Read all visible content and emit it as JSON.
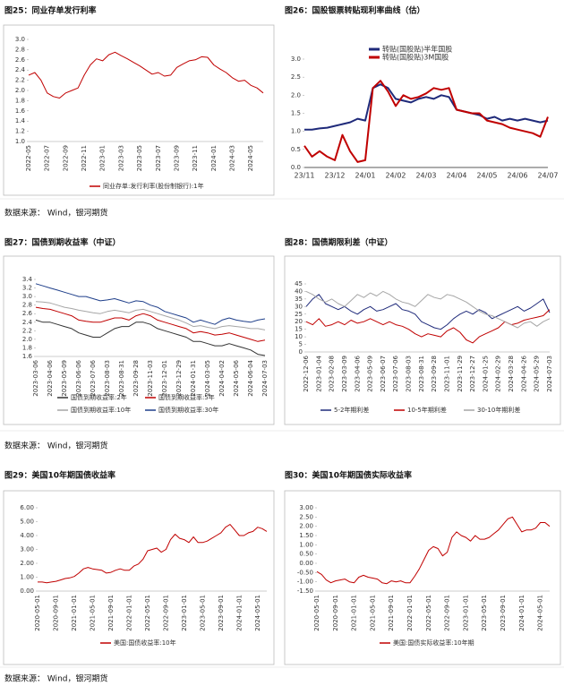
{
  "sources": [
    "数据来源： Wind，银河期货",
    "数据来源： Wind，银河期货",
    "数据来源： Wind，银河期货"
  ],
  "chart_data": [
    {
      "type": "line",
      "title": "图25：同业存单发行利率",
      "categories": [
        "2022-05",
        null,
        null,
        "2022-07",
        null,
        null,
        "2022-09",
        null,
        null,
        "2022-11",
        null,
        null,
        "2023-01",
        null,
        null,
        "2023-03",
        null,
        null,
        "2023-05",
        null,
        null,
        "2023-07",
        null,
        null,
        "2023-09",
        null,
        null,
        "2023-11",
        null,
        null,
        "2024-01",
        null,
        null,
        "2024-03",
        null,
        null,
        "2024-05",
        null,
        null
      ],
      "ylim": [
        1.0,
        3.0
      ],
      "yticks": [
        {
          "value": 1.0,
          "label": "1.0"
        },
        1.2,
        1.4,
        1.6,
        1.8,
        {
          "value": 2.0,
          "label": "2.0"
        },
        2.2,
        2.4,
        2.6,
        2.8,
        {
          "value": 3.0,
          "label": "3.0"
        }
      ],
      "series": [
        {
          "name": "同业存单:发行利率(股份制银行):1年",
          "color": "#c00000",
          "values": [
            2.3,
            2.35,
            2.2,
            1.95,
            1.88,
            1.85,
            1.95,
            2.0,
            2.05,
            2.3,
            2.5,
            2.62,
            2.58,
            2.7,
            2.75,
            2.68,
            2.62,
            2.55,
            2.48,
            2.4,
            2.32,
            2.35,
            2.28,
            2.3,
            2.45,
            2.52,
            2.58,
            2.6,
            2.66,
            2.65,
            2.5,
            2.42,
            2.35,
            2.25,
            2.18,
            2.2,
            2.1,
            2.05,
            1.95
          ]
        }
      ]
    },
    {
      "type": "line",
      "title": "图26：国股银票转贴现利率曲线（估）",
      "categories": [
        "23/11",
        null,
        null,
        null,
        "23/12",
        null,
        null,
        null,
        "24/01",
        null,
        null,
        null,
        "24/02",
        null,
        null,
        null,
        "24/03",
        null,
        null,
        null,
        "24/04",
        null,
        null,
        null,
        "24/05",
        null,
        null,
        null,
        "24/06",
        null,
        null,
        null,
        "24/07"
      ],
      "ylim": [
        0.0,
        3.0
      ],
      "yticks": [
        {
          "value": 0.0,
          "label": "0.0"
        },
        0.5,
        {
          "value": 1.0,
          "label": "1.0"
        },
        1.5,
        {
          "value": 2.0,
          "label": "2.0"
        },
        2.5,
        {
          "value": 3.0,
          "label": "3.0"
        }
      ],
      "series": [
        {
          "name": "转贴(国股贴)半年国股",
          "color": "#1f2a7a",
          "values": [
            1.05,
            1.05,
            1.08,
            1.1,
            1.15,
            1.2,
            1.25,
            1.35,
            1.3,
            2.2,
            2.3,
            2.2,
            1.9,
            1.85,
            1.8,
            1.9,
            1.95,
            1.9,
            2.0,
            1.95,
            1.6,
            1.55,
            1.5,
            1.45,
            1.35,
            1.4,
            1.3,
            1.35,
            1.3,
            1.35,
            1.3,
            1.25,
            1.3
          ]
        },
        {
          "name": "转贴(国股贴)3M国股",
          "color": "#c00000",
          "values": [
            0.6,
            0.3,
            0.45,
            0.3,
            0.2,
            0.9,
            0.45,
            0.15,
            0.2,
            2.2,
            2.4,
            2.1,
            1.7,
            2.0,
            1.9,
            1.95,
            2.05,
            2.2,
            2.15,
            2.2,
            1.6,
            1.55,
            1.5,
            1.5,
            1.3,
            1.25,
            1.2,
            1.1,
            1.05,
            1.0,
            0.95,
            0.85,
            1.4
          ]
        }
      ]
    },
    {
      "type": "line",
      "title": "图27：国债到期收益率（中证）",
      "categories": [
        "2023-03-06",
        null,
        "2023-04-06",
        null,
        "2023-05-09",
        null,
        "2023-06-06",
        null,
        "2023-07-06",
        null,
        "2023-08-03",
        null,
        "2023-08-31",
        null,
        "2023-09-28",
        null,
        "2023-11-03",
        null,
        "2023-12-01",
        null,
        "2023-12-29",
        null,
        "2024-01-31",
        null,
        "2024-03-05",
        null,
        "2024-04-02",
        null,
        "2024-05-06",
        null,
        "2024-06-04",
        null,
        "2024-07-03"
      ],
      "ylim": [
        1.6,
        3.4
      ],
      "yticks": [
        1.6,
        1.8,
        {
          "value": 2.0,
          "label": "2.0"
        },
        2.2,
        2.4,
        2.6,
        2.8,
        {
          "value": 3.0,
          "label": "3.0"
        },
        3.2,
        3.4
      ],
      "series": [
        {
          "name": "国债到期收益率:2年",
          "color": "#333333",
          "values": [
            2.45,
            2.4,
            2.4,
            2.35,
            2.3,
            2.25,
            2.15,
            2.1,
            2.05,
            2.05,
            2.15,
            2.25,
            2.3,
            2.3,
            2.4,
            2.4,
            2.35,
            2.25,
            2.2,
            2.15,
            2.1,
            2.05,
            1.95,
            1.95,
            1.9,
            1.85,
            1.85,
            1.9,
            1.85,
            1.8,
            1.75,
            1.65,
            1.62
          ]
        },
        {
          "name": "国债到期收益率:5年",
          "color": "#c00000",
          "values": [
            2.75,
            2.72,
            2.7,
            2.65,
            2.6,
            2.55,
            2.45,
            2.42,
            2.4,
            2.4,
            2.45,
            2.5,
            2.5,
            2.45,
            2.55,
            2.6,
            2.55,
            2.45,
            2.4,
            2.35,
            2.3,
            2.25,
            2.15,
            2.18,
            2.15,
            2.1,
            2.12,
            2.15,
            2.1,
            2.05,
            2.0,
            1.95,
            1.98
          ]
        },
        {
          "name": "国债到期收益率:10年",
          "color": "#a6a6a6",
          "values": [
            2.88,
            2.87,
            2.85,
            2.8,
            2.75,
            2.72,
            2.68,
            2.65,
            2.62,
            2.6,
            2.65,
            2.68,
            2.65,
            2.62,
            2.68,
            2.7,
            2.65,
            2.6,
            2.55,
            2.5,
            2.45,
            2.38,
            2.3,
            2.32,
            2.28,
            2.25,
            2.3,
            2.32,
            2.3,
            2.28,
            2.25,
            2.25,
            2.22
          ]
        },
        {
          "name": "国债到期收益率:30年",
          "color": "#1f3f8a",
          "values": [
            3.3,
            3.25,
            3.2,
            3.15,
            3.1,
            3.05,
            3.0,
            3.0,
            2.95,
            2.9,
            2.92,
            2.95,
            2.9,
            2.85,
            2.9,
            2.88,
            2.8,
            2.75,
            2.65,
            2.6,
            2.55,
            2.5,
            2.4,
            2.45,
            2.4,
            2.35,
            2.45,
            2.5,
            2.45,
            2.42,
            2.4,
            2.45,
            2.48
          ]
        }
      ]
    },
    {
      "type": "line",
      "title": "图28：国债期限利差（中证）",
      "categories": [
        "2022-12-06",
        null,
        "2023-01-04",
        null,
        "2023-02-08",
        null,
        "2023-03-09",
        null,
        "2023-04-06",
        null,
        "2023-05-09",
        null,
        "2023-06-07",
        null,
        "2023-07-06",
        null,
        "2023-08-03",
        null,
        "2023-08-31",
        null,
        "2023-09-28",
        null,
        "2023-11-01",
        null,
        "2023-11-29",
        null,
        "2023-12-27",
        null,
        "2024-01-25",
        null,
        "2024-02-29",
        null,
        "2024-03-28",
        null,
        "2024-04-26",
        null,
        "2024-05-29",
        null,
        "2024-07-03"
      ],
      "ylim": [
        0,
        45
      ],
      "yticks": [
        0,
        5,
        10,
        15,
        20,
        25,
        30,
        35,
        40,
        45
      ],
      "series": [
        {
          "name": "5-2年期利差",
          "color": "#1f2a7a",
          "values": [
            30,
            35,
            38,
            32,
            30,
            28,
            30,
            27,
            25,
            28,
            30,
            27,
            28,
            30,
            32,
            28,
            27,
            25,
            20,
            18,
            16,
            15,
            18,
            22,
            25,
            27,
            25,
            28,
            26,
            22,
            24,
            26,
            28,
            30,
            27,
            29,
            32,
            35,
            26
          ]
        },
        {
          "name": "10-5年期利差",
          "color": "#c00000",
          "values": [
            20,
            18,
            22,
            17,
            18,
            20,
            18,
            21,
            19,
            20,
            22,
            20,
            18,
            20,
            18,
            17,
            15,
            12,
            10,
            12,
            11,
            10,
            14,
            16,
            13,
            8,
            6,
            10,
            12,
            14,
            16,
            20,
            18,
            19,
            21,
            22,
            23,
            24,
            28
          ]
        },
        {
          "name": "30-10年期利差",
          "color": "#a6a6a6",
          "values": [
            40,
            38,
            35,
            33,
            35,
            32,
            30,
            34,
            38,
            36,
            39,
            37,
            40,
            38,
            35,
            33,
            32,
            30,
            34,
            38,
            36,
            35,
            38,
            37,
            35,
            33,
            30,
            27,
            25,
            24,
            22,
            20,
            18,
            16,
            19,
            20,
            17,
            20,
            22
          ]
        }
      ]
    },
    {
      "type": "line",
      "title": "图29：美国10年期国债收益率",
      "categories": [
        "2020-05-01",
        null,
        null,
        null,
        "2020-09-01",
        null,
        null,
        null,
        "2021-01-01",
        null,
        null,
        null,
        "2021-05-01",
        null,
        null,
        null,
        "2021-09-01",
        null,
        null,
        null,
        "2022-01-01",
        null,
        null,
        null,
        "2022-05-01",
        null,
        null,
        null,
        "2022-09-01",
        null,
        null,
        null,
        "2023-01-01",
        null,
        null,
        null,
        "2023-05-01",
        null,
        null,
        null,
        "2023-09-01",
        null,
        null,
        null,
        "2024-01-01",
        null,
        null,
        null,
        "2024-05-01",
        null,
        null
      ],
      "ylim": [
        0,
        6
      ],
      "yticks": [
        {
          "value": 0,
          "label": "0.00"
        },
        {
          "value": 1,
          "label": "1.00"
        },
        {
          "value": 2,
          "label": "2.00"
        },
        {
          "value": 3,
          "label": "3.00"
        },
        {
          "value": 4,
          "label": "4.00"
        },
        {
          "value": 5,
          "label": "5.00"
        },
        {
          "value": 6,
          "label": "6.00"
        }
      ],
      "series": [
        {
          "name": "美国:国债收益率:10年",
          "color": "#c00000",
          "values": [
            0.65,
            0.65,
            0.6,
            0.65,
            0.7,
            0.8,
            0.9,
            0.95,
            1.05,
            1.3,
            1.6,
            1.7,
            1.6,
            1.55,
            1.5,
            1.3,
            1.35,
            1.5,
            1.6,
            1.5,
            1.5,
            1.8,
            1.95,
            2.3,
            2.9,
            3.0,
            3.1,
            2.8,
            3.0,
            3.7,
            4.1,
            3.8,
            3.7,
            3.5,
            3.9,
            3.5,
            3.5,
            3.6,
            3.8,
            4.0,
            4.2,
            4.6,
            4.8,
            4.4,
            4.0,
            4.0,
            4.2,
            4.3,
            4.6,
            4.5,
            4.3
          ]
        }
      ]
    },
    {
      "type": "line",
      "title": "图30：美国10年期国债实际收益率",
      "categories": [
        "2020-05-01",
        null,
        null,
        null,
        "2020-09-01",
        null,
        null,
        null,
        "2021-01-01",
        null,
        null,
        null,
        "2021-05-01",
        null,
        null,
        null,
        "2021-09-01",
        null,
        null,
        null,
        "2022-01-01",
        null,
        null,
        null,
        "2022-05-01",
        null,
        null,
        null,
        "2022-09-01",
        null,
        null,
        null,
        "2023-01-01",
        null,
        null,
        null,
        "2023-05-01",
        null,
        null,
        null,
        "2023-09-01",
        null,
        null,
        null,
        "2024-01-01",
        null,
        null,
        null,
        "2024-05-01",
        null,
        null
      ],
      "ylim": [
        -1.5,
        3
      ],
      "yticks": [
        {
          "value": -1.5,
          "label": "-1.50"
        },
        {
          "value": -1,
          "label": "-1.00"
        },
        {
          "value": -0.5,
          "label": "-0.50"
        },
        {
          "value": 0,
          "label": "0.00"
        },
        {
          "value": 0.5,
          "label": "0.50"
        },
        {
          "value": 1,
          "label": "1.00"
        },
        {
          "value": 1.5,
          "label": "1.50"
        },
        {
          "value": 2,
          "label": "2.00"
        },
        {
          "value": 2.5,
          "label": "2.50"
        },
        {
          "value": 3,
          "label": "3.00"
        }
      ],
      "series": [
        {
          "name": "美国:国债实际收益率:10年期",
          "color": "#c00000",
          "values": [
            -0.45,
            -0.6,
            -0.9,
            -1.05,
            -0.95,
            -0.9,
            -0.85,
            -1.0,
            -1.05,
            -0.75,
            -0.65,
            -0.75,
            -0.8,
            -0.85,
            -1.05,
            -1.1,
            -0.95,
            -1.0,
            -0.95,
            -1.05,
            -1.05,
            -0.7,
            -0.3,
            0.2,
            0.7,
            0.9,
            0.8,
            0.4,
            0.6,
            1.4,
            1.7,
            1.5,
            1.4,
            1.2,
            1.5,
            1.3,
            1.3,
            1.4,
            1.6,
            1.8,
            2.1,
            2.4,
            2.5,
            2.1,
            1.7,
            1.8,
            1.8,
            1.9,
            2.2,
            2.2,
            2.0
          ]
        }
      ]
    }
  ]
}
